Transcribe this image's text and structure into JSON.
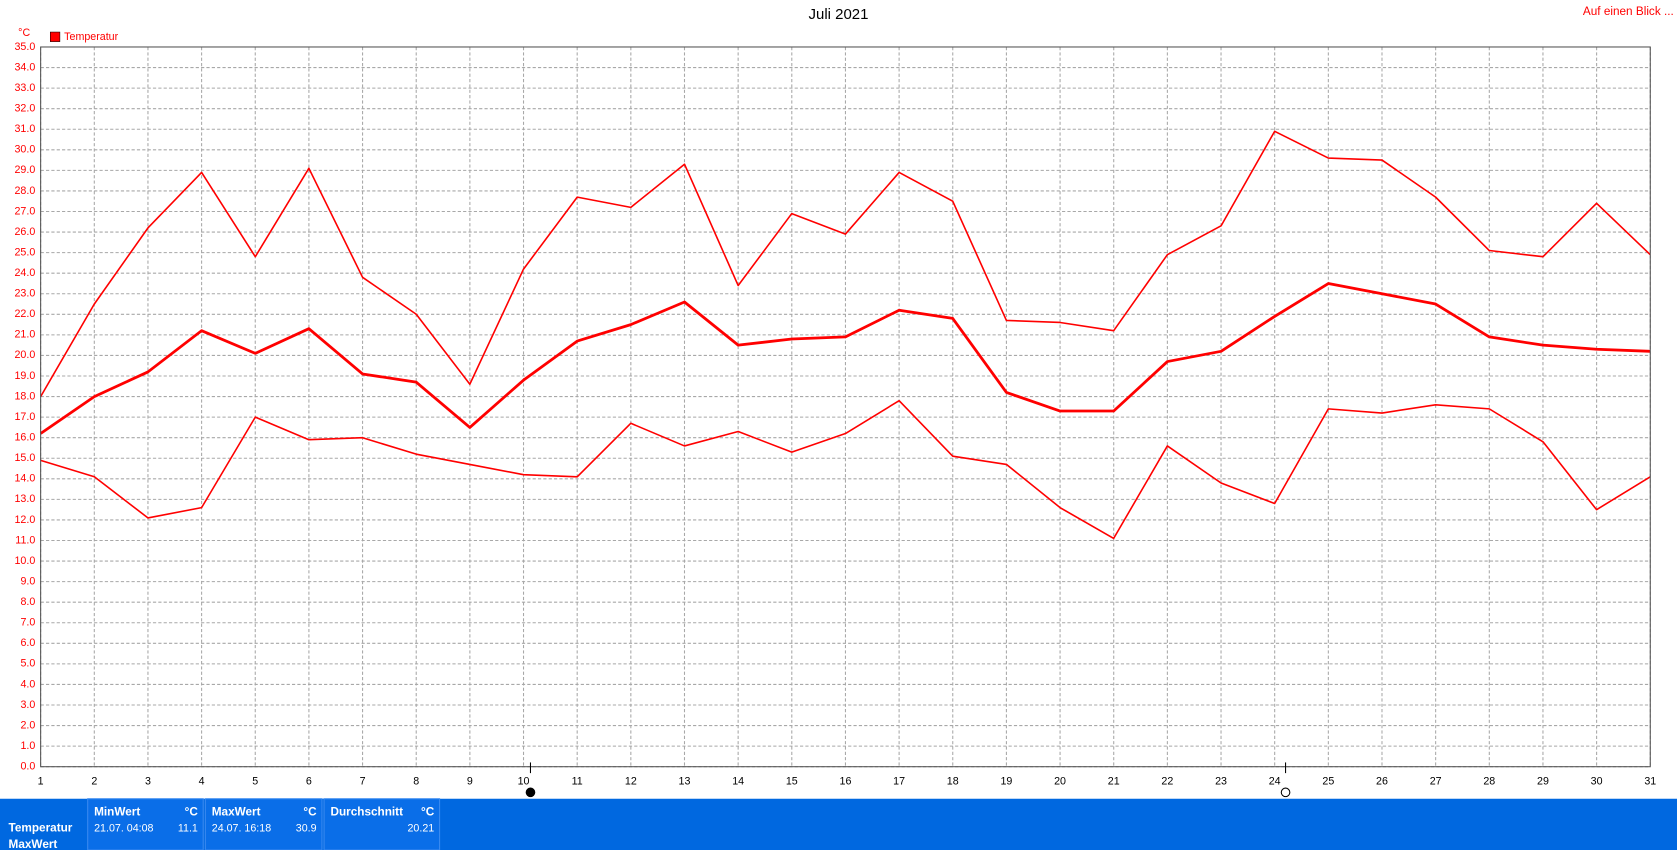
{
  "chart_data": {
    "type": "line",
    "title": "Juli 2021",
    "link": "Auf einen Blick ...",
    "y_unit": "°C",
    "legend": {
      "label": "Temperatur",
      "color": "#ff0000"
    },
    "x": [
      1,
      2,
      3,
      4,
      5,
      6,
      7,
      8,
      9,
      10,
      11,
      12,
      13,
      14,
      15,
      16,
      17,
      18,
      19,
      20,
      21,
      22,
      23,
      24,
      25,
      26,
      27,
      28,
      29,
      30,
      31
    ],
    "xlim": [
      1,
      31
    ],
    "xticks": [
      1,
      2,
      3,
      4,
      5,
      6,
      7,
      8,
      9,
      10,
      11,
      12,
      13,
      14,
      15,
      16,
      17,
      18,
      19,
      20,
      21,
      22,
      23,
      24,
      25,
      26,
      27,
      28,
      29,
      30,
      31
    ],
    "ylim": [
      0,
      35
    ],
    "yticks": [
      {
        "value": 0,
        "label": "0.0"
      },
      {
        "value": 1,
        "label": "1.0"
      },
      {
        "value": 2,
        "label": "2.0"
      },
      {
        "value": 3,
        "label": "3.0"
      },
      {
        "value": 4,
        "label": "4.0"
      },
      {
        "value": 5,
        "label": "5.0"
      },
      {
        "value": 6,
        "label": "6.0"
      },
      {
        "value": 7,
        "label": "7.0"
      },
      {
        "value": 8,
        "label": "8.0"
      },
      {
        "value": 9,
        "label": "9.0"
      },
      {
        "value": 10,
        "label": "10.0"
      },
      {
        "value": 11,
        "label": "11.0"
      },
      {
        "value": 12,
        "label": "12.0"
      },
      {
        "value": 13,
        "label": "13.0"
      },
      {
        "value": 14,
        "label": "14.0"
      },
      {
        "value": 15,
        "label": "15.0"
      },
      {
        "value": 16,
        "label": "16.0"
      },
      {
        "value": 17,
        "label": "17.0"
      },
      {
        "value": 18,
        "label": "18.0"
      },
      {
        "value": 19,
        "label": "19.0"
      },
      {
        "value": 20,
        "label": "20.0"
      },
      {
        "value": 21,
        "label": "21.0"
      },
      {
        "value": 22,
        "label": "22.0"
      },
      {
        "value": 23,
        "label": "23.0"
      },
      {
        "value": 24,
        "label": "24.0"
      },
      {
        "value": 25,
        "label": "25.0"
      },
      {
        "value": 26,
        "label": "26.0"
      },
      {
        "value": 27,
        "label": "27.0"
      },
      {
        "value": 28,
        "label": "28.0"
      },
      {
        "value": 29,
        "label": "29.0"
      },
      {
        "value": 30,
        "label": "30.0"
      },
      {
        "value": 31,
        "label": "31.0"
      },
      {
        "value": 32,
        "label": "32.0"
      },
      {
        "value": 33,
        "label": "33.0"
      },
      {
        "value": 34,
        "label": "34.0"
      },
      {
        "value": 35,
        "label": "35.0"
      }
    ],
    "grid": true,
    "series": [
      {
        "color": "#ff0000",
        "width": 1.5,
        "values": [
          18.0,
          22.5,
          26.2,
          28.9,
          24.8,
          29.1,
          23.8,
          22.0,
          18.6,
          24.2,
          27.7,
          27.2,
          29.3,
          23.4,
          26.9,
          25.9,
          28.9,
          27.5,
          21.7,
          21.6,
          21.2,
          24.9,
          26.3,
          30.9,
          29.6,
          29.5,
          27.7,
          25.1,
          24.8,
          27.4,
          24.9
        ]
      },
      {
        "color": "#ff0000",
        "width": 2.6,
        "values": [
          16.2,
          18.0,
          19.2,
          21.2,
          20.1,
          21.3,
          19.1,
          18.7,
          16.5,
          18.8,
          20.7,
          21.5,
          22.6,
          20.5,
          20.8,
          20.9,
          22.2,
          21.8,
          18.2,
          17.3,
          17.3,
          19.7,
          20.2,
          21.9,
          23.5,
          23.0,
          22.5,
          20.9,
          20.5,
          20.3,
          20.2
        ]
      },
      {
        "color": "#ff0000",
        "width": 1.5,
        "values": [
          14.9,
          14.1,
          12.1,
          12.6,
          17.0,
          15.9,
          16.0,
          15.2,
          14.7,
          14.2,
          14.1,
          16.7,
          15.6,
          16.3,
          15.3,
          16.2,
          17.8,
          15.1,
          14.7,
          12.6,
          11.1,
          15.6,
          13.8,
          12.8,
          17.4,
          17.2,
          17.6,
          17.4,
          15.8,
          12.5,
          14.1
        ]
      }
    ]
  },
  "summary": {
    "row_labels": [
      "Temperatur",
      "MaxWert"
    ],
    "min": {
      "title": "MinWert",
      "unit": "°C",
      "when": "21.07.  04:08",
      "value": "11.1"
    },
    "max": {
      "title": "MaxWert",
      "unit": "°C",
      "when": "24.07.  16:18",
      "value": "30.9"
    },
    "avg": {
      "title": "Durchschnitt",
      "unit": "°C",
      "value": "20.21"
    }
  }
}
